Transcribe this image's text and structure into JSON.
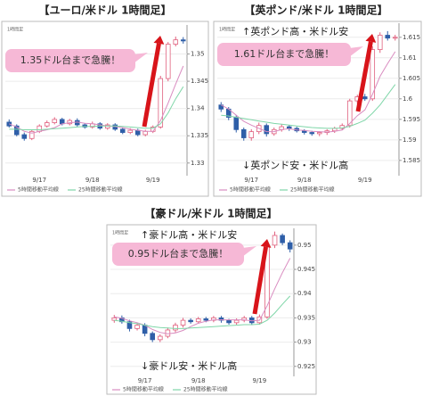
{
  "chart_data": [
    {
      "type": "candlestick",
      "title": "【ユーロ/米ドル 1時間足】",
      "timeframe_label": "1時間足",
      "callout": "1.35ドル台まで急騰！",
      "categories": [
        null,
        null,
        null,
        null,
        "9/17",
        null,
        null,
        null,
        null,
        null,
        null,
        "9/18",
        null,
        null,
        null,
        null,
        null,
        null,
        null,
        "9/19",
        null,
        null,
        null,
        null
      ],
      "open": [
        1.3375,
        1.3368,
        1.3352,
        1.3345,
        1.3358,
        1.3368,
        1.3374,
        1.338,
        1.3372,
        1.3378,
        1.337,
        1.3366,
        1.3372,
        1.3364,
        1.337,
        1.3362,
        1.3356,
        1.336,
        1.3352,
        1.3358,
        1.3366,
        1.3455,
        1.3518,
        1.3526
      ],
      "high": [
        1.338,
        1.3371,
        1.3356,
        1.3361,
        1.3371,
        1.3378,
        1.3384,
        1.3383,
        1.3381,
        1.3382,
        1.3373,
        1.3376,
        1.3375,
        1.3373,
        1.3373,
        1.3365,
        1.3364,
        1.3363,
        1.3361,
        1.3369,
        1.346,
        1.3522,
        1.3532,
        1.3531
      ],
      "low": [
        1.3365,
        1.3349,
        1.3341,
        1.3342,
        1.3355,
        1.3365,
        1.3371,
        1.3369,
        1.3369,
        1.3367,
        1.3363,
        1.3363,
        1.3361,
        1.3361,
        1.3359,
        1.3353,
        1.3353,
        1.3349,
        1.3349,
        1.3355,
        1.3363,
        1.345,
        1.3514,
        1.3519
      ],
      "close": [
        1.3368,
        1.3352,
        1.3345,
        1.3358,
        1.3368,
        1.3374,
        1.338,
        1.3372,
        1.3378,
        1.337,
        1.3366,
        1.3372,
        1.3364,
        1.337,
        1.3362,
        1.3356,
        1.336,
        1.3352,
        1.3358,
        1.3366,
        1.3455,
        1.3518,
        1.3526,
        1.3524
      ],
      "up_color": "#e0607e",
      "down_color": "#2f5fa8",
      "series": [
        {
          "name": "5時間移動平均線",
          "color": "#d98cc0",
          "values": [
            1.3372,
            1.3366,
            1.3358,
            1.3355,
            1.3358,
            1.3361,
            1.3365,
            1.3372,
            1.3374,
            1.3375,
            1.3373,
            1.3372,
            1.337,
            1.3368,
            1.3367,
            1.3365,
            1.3362,
            1.336,
            1.3358,
            1.3358,
            1.3378,
            1.341,
            1.3445,
            1.3478
          ]
        },
        {
          "name": "25時間移動平均線",
          "color": "#7fd6a8",
          "values": [
            1.3362,
            1.3362,
            1.3361,
            1.3361,
            1.3361,
            1.3362,
            1.3363,
            1.3364,
            1.3365,
            1.3366,
            1.3367,
            1.3367,
            1.3368,
            1.3368,
            1.3368,
            1.3367,
            1.3366,
            1.3365,
            1.3364,
            1.3364,
            1.3372,
            1.3392,
            1.3418,
            1.344
          ]
        }
      ],
      "ylim": [
        1.328,
        1.355
      ],
      "yticks": [
        1.33,
        1.335,
        1.34,
        1.345,
        1.35
      ],
      "grid": true
    },
    {
      "type": "candlestick",
      "title": "【英ポンド/米ドル 1時間足】",
      "timeframe_label": "1時間足",
      "callout": "1.61ドル台まで急騰！",
      "upper_note": "↑英ポンド高・米ドル安",
      "lower_note": "↓英ポンド安・米ドル高",
      "categories": [
        null,
        null,
        null,
        null,
        "9/17",
        null,
        null,
        null,
        null,
        null,
        null,
        "9/18",
        null,
        null,
        null,
        null,
        null,
        null,
        null,
        "9/19",
        null,
        null,
        null,
        null
      ],
      "open": [
        1.5985,
        1.5975,
        1.5955,
        1.5925,
        1.5905,
        1.592,
        1.5935,
        1.5915,
        1.5925,
        1.5932,
        1.5928,
        1.5922,
        1.5918,
        1.5915,
        1.5918,
        1.5922,
        1.5928,
        1.5935,
        1.5995,
        1.6005,
        1.6,
        1.612,
        1.6155,
        1.6148
      ],
      "high": [
        1.5992,
        1.598,
        1.596,
        1.593,
        1.5926,
        1.5942,
        1.594,
        1.593,
        1.5938,
        1.5936,
        1.5932,
        1.5926,
        1.5922,
        1.5921,
        1.5926,
        1.5932,
        1.594,
        1.6,
        1.601,
        1.6012,
        1.6128,
        1.6162,
        1.6165,
        1.6156
      ],
      "low": [
        1.5968,
        1.5948,
        1.5918,
        1.5898,
        1.5898,
        1.5914,
        1.5908,
        1.591,
        1.592,
        1.5922,
        1.5918,
        1.5913,
        1.591,
        1.5909,
        1.5912,
        1.5917,
        1.5924,
        1.593,
        1.5988,
        1.5995,
        1.5995,
        1.6112,
        1.6142,
        1.6142
      ],
      "close": [
        1.5975,
        1.5955,
        1.5925,
        1.5905,
        1.592,
        1.5935,
        1.5915,
        1.5925,
        1.5932,
        1.5928,
        1.5922,
        1.5918,
        1.5915,
        1.5918,
        1.5922,
        1.5928,
        1.5935,
        1.5995,
        1.6005,
        1.6,
        1.612,
        1.6155,
        1.6148,
        1.615
      ],
      "up_color": "#e0607e",
      "down_color": "#2f5fa8",
      "series": [
        {
          "name": "5時間移動平均線",
          "color": "#d98cc0",
          "values": [
            1.5985,
            1.5975,
            1.596,
            1.5945,
            1.5936,
            1.5928,
            1.592,
            1.592,
            1.5925,
            1.5927,
            1.5924,
            1.5923,
            1.5921,
            1.592,
            1.5919,
            1.5921,
            1.5924,
            1.594,
            1.5959,
            1.5973,
            1.6011,
            1.6055,
            1.6086,
            1.6115
          ]
        },
        {
          "name": "25時間移動平均線",
          "color": "#7fd6a8",
          "values": [
            1.596,
            1.5958,
            1.5955,
            1.5952,
            1.5949,
            1.5946,
            1.5943,
            1.594,
            1.5938,
            1.5936,
            1.5934,
            1.5932,
            1.593,
            1.5929,
            1.5928,
            1.5928,
            1.5929,
            1.5933,
            1.594,
            1.5948,
            1.5965,
            1.5985,
            1.601,
            1.6035
          ]
        }
      ],
      "ylim": [
        1.5817,
        1.618
      ],
      "yticks": [
        1.585,
        1.59,
        1.595,
        1.6,
        1.605,
        1.61,
        1.615
      ],
      "grid": true
    },
    {
      "type": "candlestick",
      "title": "【豪ドル/米ドル 1時間足】",
      "timeframe_label": "1時間足",
      "callout": "0.95ドル台まで急騰！",
      "upper_note": "↑豪ドル高・米ドル安",
      "lower_note": "↓豪ドル安・米ドル高",
      "categories": [
        null,
        null,
        null,
        null,
        "9/17",
        null,
        null,
        null,
        null,
        null,
        null,
        "9/18",
        null,
        null,
        null,
        null,
        null,
        null,
        null,
        "9/19",
        null,
        null,
        null,
        null
      ],
      "open": [
        0.9345,
        0.935,
        0.9342,
        0.9328,
        0.9335,
        0.9318,
        0.9305,
        0.9312,
        0.9325,
        0.9335,
        0.9345,
        0.9342,
        0.9348,
        0.9345,
        0.935,
        0.9345,
        0.934,
        0.9345,
        0.935,
        0.934,
        0.9352,
        0.95,
        0.952,
        0.9505
      ],
      "high": [
        0.9356,
        0.9355,
        0.9346,
        0.934,
        0.9339,
        0.9322,
        0.9316,
        0.933,
        0.934,
        0.935,
        0.9349,
        0.9352,
        0.9352,
        0.9354,
        0.9354,
        0.9348,
        0.9349,
        0.9354,
        0.9354,
        0.9357,
        0.9508,
        0.9528,
        0.9524,
        0.951
      ],
      "low": [
        0.934,
        0.9338,
        0.9322,
        0.9324,
        0.9312,
        0.93,
        0.93,
        0.9308,
        0.932,
        0.933,
        0.9338,
        0.9338,
        0.9341,
        0.9341,
        0.934,
        0.9336,
        0.9336,
        0.9341,
        0.9335,
        0.9336,
        0.9348,
        0.9494,
        0.95,
        0.9485
      ],
      "close": [
        0.935,
        0.9342,
        0.9328,
        0.9335,
        0.9318,
        0.9305,
        0.9312,
        0.9325,
        0.9335,
        0.9345,
        0.9342,
        0.9348,
        0.9345,
        0.935,
        0.9345,
        0.934,
        0.9345,
        0.935,
        0.934,
        0.9352,
        0.95,
        0.952,
        0.9505,
        0.9492
      ],
      "up_color": "#e0607e",
      "down_color": "#2f5fa8",
      "series": [
        {
          "name": "5時間移動平均線",
          "color": "#d98cc0",
          "values": [
            0.9352,
            0.9349,
            0.9344,
            0.934,
            0.9335,
            0.9326,
            0.932,
            0.9317,
            0.9319,
            0.9324,
            0.9332,
            0.9339,
            0.9343,
            0.9346,
            0.9346,
            0.9346,
            0.9346,
            0.9346,
            0.9344,
            0.9345,
            0.9375,
            0.941,
            0.9443,
            0.9473
          ]
        },
        {
          "name": "25時間移動平均線",
          "color": "#7fd6a8",
          "values": [
            0.9345,
            0.9343,
            0.934,
            0.9338,
            0.9335,
            0.9332,
            0.933,
            0.9329,
            0.9328,
            0.9328,
            0.9329,
            0.933,
            0.9331,
            0.9332,
            0.9333,
            0.9334,
            0.9335,
            0.9336,
            0.9336,
            0.9337,
            0.9345,
            0.936,
            0.9378,
            0.9395
          ]
        }
      ],
      "ylim": [
        0.9233,
        0.9531
      ],
      "yticks": [
        0.925,
        0.93,
        0.935,
        0.94,
        0.945,
        0.95
      ],
      "grid": true
    }
  ]
}
